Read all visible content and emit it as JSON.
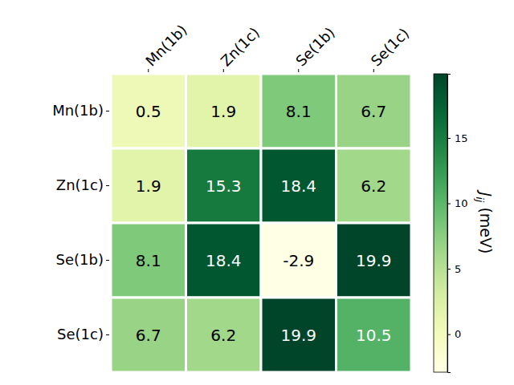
{
  "chart_data": {
    "type": "heatmap",
    "x": [
      "Mn(1b)",
      "Zn(1c)",
      "Se(1b)",
      "Se(1c)"
    ],
    "y": [
      "Mn(1b)",
      "Zn(1c)",
      "Se(1b)",
      "Se(1c)"
    ],
    "values": [
      [
        0.5,
        1.9,
        8.1,
        6.7
      ],
      [
        1.9,
        15.3,
        18.4,
        6.2
      ],
      [
        8.1,
        18.4,
        -2.9,
        19.9
      ],
      [
        6.7,
        6.2,
        19.9,
        10.5
      ]
    ],
    "color": "YlGn",
    "data_labels": true,
    "colorbar": {
      "range": [
        -2.9,
        19.9
      ],
      "ticks": [
        0,
        5,
        10,
        15
      ],
      "label": "Jij (meV)"
    }
  }
}
